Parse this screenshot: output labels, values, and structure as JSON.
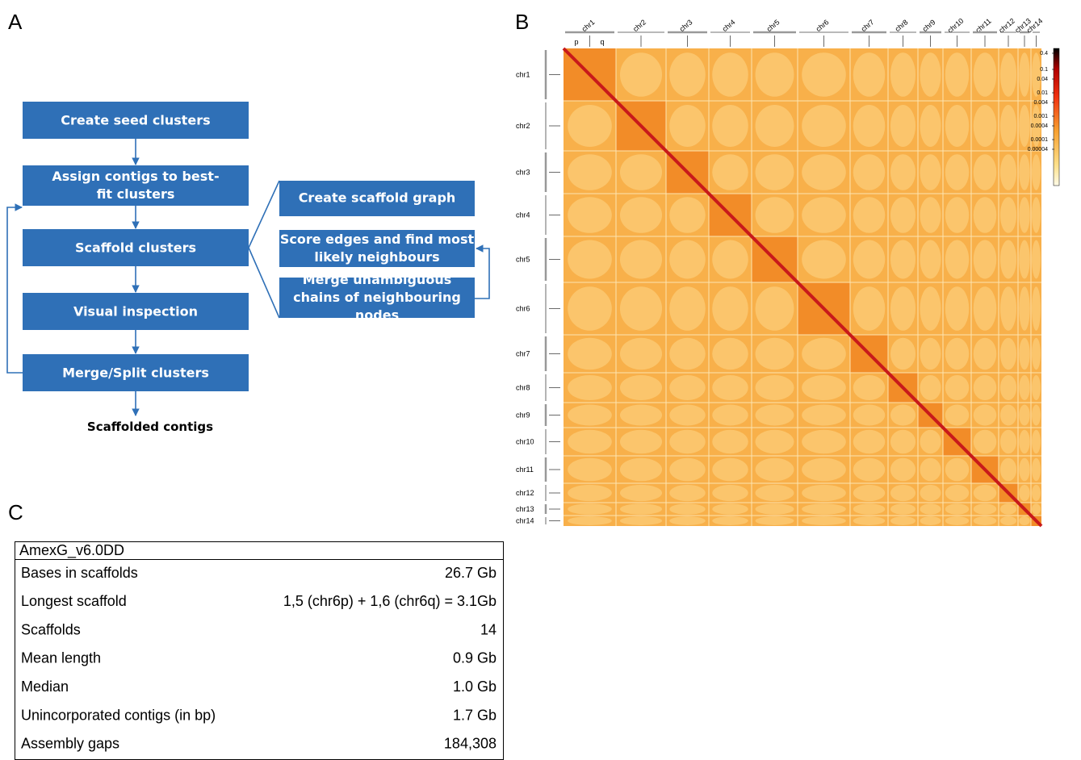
{
  "panels": {
    "a": "A",
    "b": "B",
    "c": "C"
  },
  "flowchart": {
    "steps": [
      "Create seed clusters",
      "Assign contigs to best-fit clusters",
      "Scaffold clusters",
      "Visual inspection",
      "Merge/Split clusters"
    ],
    "substeps": [
      "Create scaffold graph",
      "Score edges and find most likely neighbours",
      "Merge unambiguous chains of neighbouring nodes"
    ],
    "output": "Scaffolded contigs"
  },
  "hic": {
    "chromosomes": [
      "chr1",
      "chr2",
      "chr3",
      "chr4",
      "chr5",
      "chr6",
      "chr7",
      "chr8",
      "chr9",
      "chr10",
      "chr11",
      "chr12",
      "chr13",
      "chr14"
    ],
    "arms": [
      "p",
      "q"
    ],
    "colorbar_labels": [
      "0.4",
      "0.1",
      "0.04",
      "0.01",
      "0.004",
      "0.001",
      "0.0004",
      "0.0001",
      "0.00004"
    ]
  },
  "table": {
    "title": "AmexG_v6.0DD",
    "rows": [
      [
        "Bases in scaffolds",
        "26.7 Gb"
      ],
      [
        "Longest scaffold",
        "1,5 (chr6p) + 1,6 (chr6q) = 3.1Gb"
      ],
      [
        "Scaffolds",
        "14"
      ],
      [
        "Mean length",
        "0.9 Gb"
      ],
      [
        "Median",
        "1.0 Gb"
      ],
      [
        "Unincorporated contigs (in bp)",
        "1.7 Gb"
      ],
      [
        "Assembly gaps",
        "184,308"
      ]
    ]
  }
}
